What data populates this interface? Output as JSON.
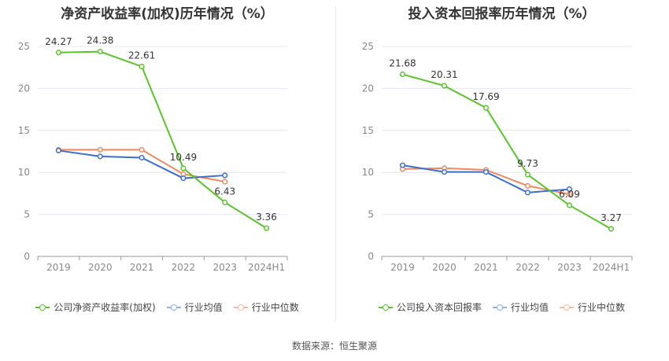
{
  "source_text": "数据来源：恒生聚源",
  "chart_data": [
    {
      "type": "line",
      "title": "净资产收益率(加权)历年情况（%）",
      "categories": [
        "2019",
        "2020",
        "2021",
        "2022",
        "2023",
        "2024H1"
      ],
      "ylim": [
        0,
        25
      ],
      "yticks": [
        0,
        5,
        10,
        15,
        20,
        25
      ],
      "grid": true,
      "legend_position": "bottom",
      "series": [
        {
          "name": "公司净资产收益率(加权)",
          "color": "#5ac42b",
          "values": [
            24.27,
            24.38,
            22.61,
            10.49,
            6.43,
            3.36
          ],
          "labels": [
            "24.27",
            "24.38",
            "22.61",
            "10.49",
            "6.43",
            "3.36"
          ]
        },
        {
          "name": "行业均值",
          "color": "#3a6fd0",
          "values": [
            12.6,
            11.9,
            11.75,
            9.3,
            9.65,
            null
          ]
        },
        {
          "name": "行业中位数",
          "color": "#f08860",
          "values": [
            12.7,
            12.7,
            12.7,
            9.8,
            8.9,
            null
          ]
        }
      ]
    },
    {
      "type": "line",
      "title": "投入资本回报率历年情况（%）",
      "categories": [
        "2019",
        "2020",
        "2021",
        "2022",
        "2023",
        "2024H1"
      ],
      "ylim": [
        0,
        25
      ],
      "yticks": [
        0,
        5,
        10,
        15,
        20,
        25
      ],
      "grid": true,
      "legend_position": "bottom",
      "series": [
        {
          "name": "公司投入资本回报率",
          "color": "#5ac42b",
          "values": [
            21.68,
            20.31,
            17.69,
            9.73,
            6.09,
            3.27
          ],
          "labels": [
            "21.68",
            "20.31",
            "17.69",
            "9.73",
            "6.09",
            "3.27"
          ]
        },
        {
          "name": "行业均值",
          "color": "#3a6fd0",
          "values": [
            10.85,
            10.05,
            10.05,
            7.6,
            8.0,
            null
          ]
        },
        {
          "name": "行业中位数",
          "color": "#f08860",
          "values": [
            10.4,
            10.5,
            10.3,
            8.4,
            7.4,
            null
          ]
        }
      ]
    }
  ]
}
